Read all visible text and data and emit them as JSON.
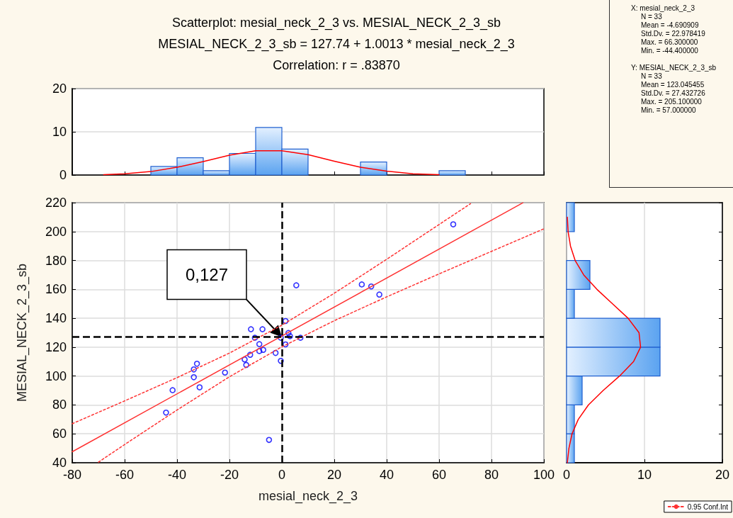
{
  "chart_data": [
    {
      "type": "histogram",
      "title": "Scatterplot: mesial_neck_2_3 vs. MESIAL_NECK_2_3_sb",
      "subtitle": "MESIAL_NECK_2_3_sb = 127.74 + 1.0013 * mesial_neck_2_3",
      "annotations": [
        "Correlation: r = .83870"
      ],
      "bins": [
        -50,
        -40,
        -30,
        -20,
        -10,
        0,
        10,
        20,
        30,
        40,
        50,
        60,
        70
      ],
      "xlim": [
        -80,
        100
      ],
      "xticks": [
        {
          "value": -80,
          "label": null
        },
        {
          "value": -60,
          "label": null
        },
        {
          "value": -40,
          "label": null
        },
        {
          "value": -20,
          "label": null
        },
        {
          "value": 0,
          "label": null
        },
        {
          "value": 20,
          "label": null
        },
        {
          "value": 40,
          "label": null
        },
        {
          "value": 60,
          "label": null
        },
        {
          "value": 80,
          "label": null
        },
        {
          "value": 100,
          "label": null
        }
      ],
      "ylim": [
        0,
        20
      ],
      "yticks": [
        0,
        10,
        20
      ],
      "grid": "y",
      "tick_labels": "y",
      "series": [
        {
          "type": "histogram",
          "color": "#2060d0",
          "values": [
            2,
            4,
            1,
            5,
            11,
            6,
            0,
            0,
            3,
            0,
            0,
            1
          ]
        },
        {
          "type": "line",
          "color": "#ff0000",
          "x": [
            -68,
            -60,
            -50,
            -40,
            -30,
            -20,
            -10,
            0,
            10,
            20,
            30,
            40,
            50,
            60
          ],
          "values": [
            0.1,
            0.3,
            0.8,
            1.8,
            3.1,
            4.6,
            5.6,
            5.6,
            4.7,
            3.2,
            1.8,
            0.9,
            0.3,
            0.1
          ]
        }
      ]
    },
    {
      "type": "other",
      "annotations": [
        "X:  mesial_neck_2_3\nN = 33\nMean = -4.690909\nStd.Dv. = 22.978419\nMax. = 66.300000\nMin. = -44.400000",
        "Y:  MESIAL_NECK_2_3_sb\nN = 33\nMean = 123.045455\nStd.Dv. = 27.432726\nMax. = 205.100000\nMin. = 57.000000"
      ]
    },
    {
      "type": "scatter",
      "xlabel": "mesial_neck_2_3",
      "ylabel": "MESIAL_NECK_2_3_sb",
      "xlim": [
        -80,
        100
      ],
      "xticks": [
        -80,
        -60,
        -40,
        -20,
        0,
        20,
        40,
        60,
        80,
        100
      ],
      "ylim": [
        40,
        220
      ],
      "yticks": [
        40,
        60,
        80,
        100,
        120,
        140,
        160,
        180,
        200,
        220
      ],
      "grid": true,
      "legend": "bottom right",
      "ref_lines": [
        {
          "axis": "x",
          "value": 0,
          "color": "#000000",
          "line_style": "dashed"
        },
        {
          "axis": "y",
          "value": 127,
          "color": "#000000",
          "line_style": "dashed"
        }
      ],
      "annotations": [
        "0,127"
      ],
      "series": [
        {
          "type": "scatter",
          "marker": "circle",
          "color": "#0000ff",
          "x": [
            5.5,
            1.4,
            -11.8,
            -7.4,
            -10.3,
            -0.4,
            2.5,
            3.1,
            7.1,
            -8.6,
            1.4,
            -8.6,
            -7.1,
            -2.4,
            -12.1,
            -0.4,
            -14.2,
            -13.6,
            -21.7,
            -32.4,
            -33.6,
            -33.6,
            -31.4,
            -41.7,
            -44.2,
            -4.9,
            65.4,
            30.5,
            34.1,
            37.2
          ],
          "values": [
            162.8,
            138.1,
            132.4,
            132.4,
            126.5,
            126.5,
            129.8,
            127.6,
            126.5,
            122.1,
            121.9,
            117.3,
            118.1,
            116.0,
            114.7,
            110.5,
            111.5,
            107.7,
            102.4,
            108.5,
            104.6,
            99.2,
            92.2,
            90.2,
            74.7,
            55.8,
            205.0,
            163.4,
            162.0,
            156.4
          ]
        },
        {
          "type": "line",
          "color": "#ff3333",
          "line_style": "solid",
          "x": [
            -80,
            92
          ],
          "values": [
            47.6,
            219.9
          ]
        },
        {
          "type": "line",
          "name": "0.95 Conf.Int",
          "color": "#ff3333",
          "line_style": "dotted",
          "x": [
            -80,
            -60,
            -40,
            -20,
            0,
            20,
            40,
            60,
            72
          ],
          "values": [
            67.0,
            82.8,
            98.9,
            115.9,
            135.2,
            157.3,
            180.8,
            204.9,
            219.3
          ]
        },
        {
          "type": "line",
          "color": "#ff3333",
          "line_style": "dotted",
          "x": [
            -70,
            -60,
            -40,
            -20,
            0,
            20,
            40,
            60,
            80,
            100
          ],
          "values": [
            40.4,
            52.6,
            76.5,
            99.5,
            120.2,
            138.3,
            154.8,
            170.7,
            186.3,
            201.9
          ]
        }
      ]
    },
    {
      "type": "histogram",
      "orientation": "horizontal",
      "bins": [
        40,
        60,
        80,
        100,
        120,
        140,
        160,
        180,
        200,
        220
      ],
      "xlim": [
        0,
        20
      ],
      "xticks": [
        0,
        10,
        20
      ],
      "ylim": [
        40,
        220
      ],
      "yticks": [
        {
          "value": 40,
          "label": null
        },
        {
          "value": 60,
          "label": null
        },
        {
          "value": 80,
          "label": null
        },
        {
          "value": 100,
          "label": null
        },
        {
          "value": 120,
          "label": null
        },
        {
          "value": 140,
          "label": null
        },
        {
          "value": 160,
          "label": null
        },
        {
          "value": 180,
          "label": null
        },
        {
          "value": 200,
          "label": null
        },
        {
          "value": 220,
          "label": null
        }
      ],
      "grid": "x",
      "tick_labels": "x",
      "series": [
        {
          "type": "histogram",
          "color": "#2060d0",
          "values": [
            1,
            1,
            2,
            12,
            12,
            1,
            3,
            0,
            1
          ]
        },
        {
          "type": "line",
          "color": "#ff0000",
          "x": [
            40,
            50,
            60,
            70,
            80,
            90,
            100,
            110,
            120,
            130,
            140,
            150,
            160,
            170,
            180,
            190,
            200,
            210
          ],
          "values": [
            0.1,
            0.3,
            0.7,
            1.5,
            2.8,
            4.7,
            6.8,
            8.6,
            9.5,
            9.3,
            7.9,
            5.9,
            3.9,
            2.2,
            1.1,
            0.5,
            0.2,
            0.1
          ]
        }
      ]
    }
  ]
}
